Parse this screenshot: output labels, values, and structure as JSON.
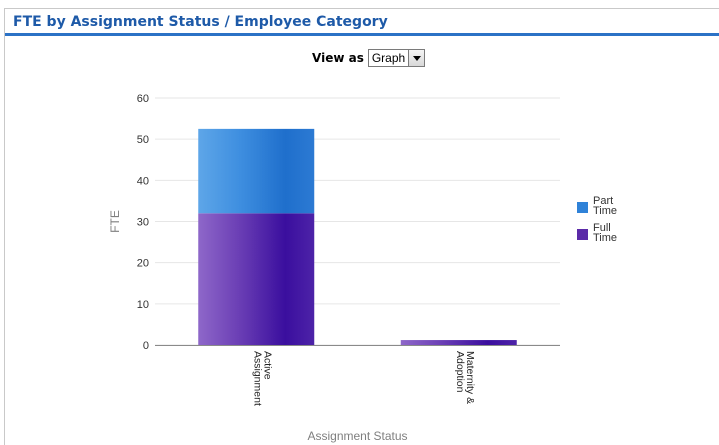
{
  "panel": {
    "title": "FTE by Assignment Status / Employee Category"
  },
  "view_as": {
    "label": "View as",
    "selected": "Graph"
  },
  "icons": {
    "dropdown": "chevron-down-icon"
  },
  "chart_data": {
    "type": "bar",
    "stacked": true,
    "categories": [
      [
        "Active",
        "Assignment"
      ],
      [
        "Maternity &",
        "Adoption"
      ]
    ],
    "series": [
      {
        "name": [
          "Full",
          "Time"
        ],
        "values": [
          32,
          1.2
        ],
        "color": "#5b2aa8"
      },
      {
        "name": [
          "Part",
          "Time"
        ],
        "values": [
          20.5,
          0
        ],
        "color": "#2f82d8"
      }
    ],
    "xlabel": "Assignment Status",
    "ylabel": "FTE",
    "ylim": [
      0,
      60
    ],
    "yticks": [
      0,
      10,
      20,
      30,
      40,
      50,
      60
    ],
    "grid": true,
    "legend_position": "right"
  }
}
